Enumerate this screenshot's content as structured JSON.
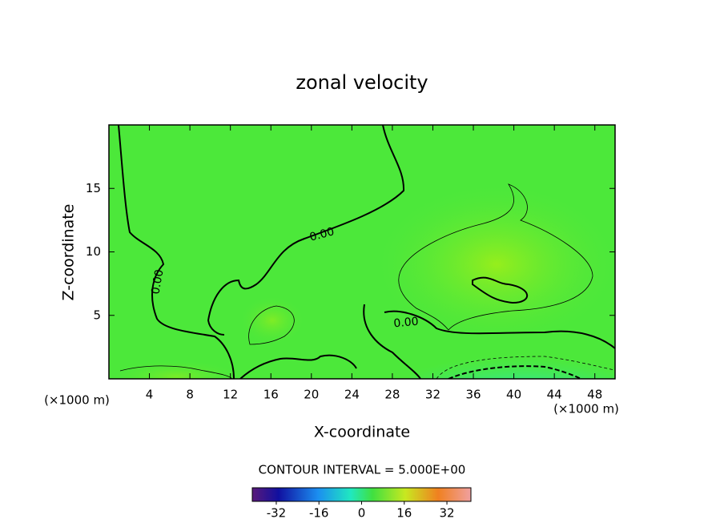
{
  "chart_data": {
    "type": "contour",
    "title": "zonal velocity",
    "x_label": "X-coordinate",
    "y_label": "Z-coordinate",
    "x_unit_left": "(×1000 m)",
    "x_unit_right": "(×1000 m)",
    "xlim": [
      0,
      50
    ],
    "xticks": [
      4,
      8,
      12,
      16,
      20,
      24,
      28,
      32,
      36,
      40,
      44,
      48
    ],
    "ylim": [
      0,
      20
    ],
    "yticks": [
      5,
      10,
      15
    ],
    "contour_labels": [
      "0.00",
      "0.00",
      "0.00"
    ],
    "contour_interval_text": "CONTOUR INTERVAL = 5.000E+00",
    "colorbar_lim": [
      -41,
      41
    ],
    "colorbar_ticks": [
      -32,
      -16,
      0,
      16,
      32
    ]
  }
}
